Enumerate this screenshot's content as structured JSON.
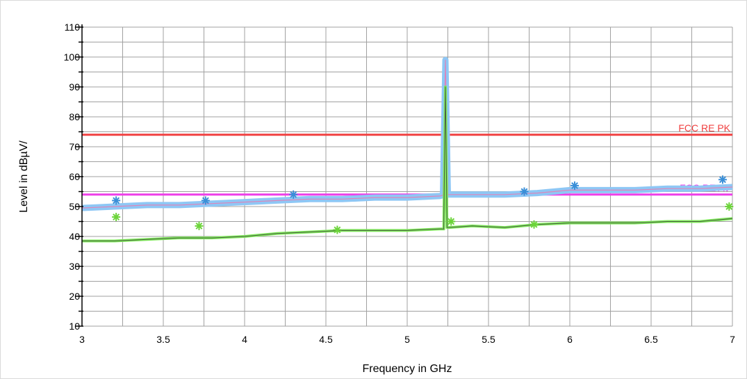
{
  "chart_data": {
    "type": "line",
    "xlabel": "Frequency in GHz",
    "ylabel": "Level in dBµV/",
    "xlim": [
      3,
      7
    ],
    "ylim": [
      10,
      110
    ],
    "xticks": [
      "3",
      "3.5",
      "4",
      "4.5",
      "5",
      "5.5",
      "6",
      "6.5",
      "7"
    ],
    "yticks": [
      "10",
      "20",
      "30",
      "40",
      "50",
      "60",
      "70",
      "80",
      "90",
      "100",
      "110"
    ],
    "grid": true,
    "colors": {
      "grid": "#a0a0a0",
      "peak_trace": "#ff6aa0",
      "peak_trace_wide": "#8ec7f5",
      "avg_trace": "#3a3a3a",
      "avg_trace_wide": "#7fe85a",
      "limit_pk": "#f04040",
      "limit_av": "#ee3ee8",
      "peak_marker": "#3a8fd8",
      "avg_marker": "#6cd43a"
    },
    "limit_lines": [
      {
        "label": "FCC RE PK",
        "value": 74,
        "color": "#f04040"
      },
      {
        "label": "FCC RE AV",
        "value": 54,
        "color": "#ee3ee8"
      }
    ],
    "series": [
      {
        "x": [
          3.0,
          3.2,
          3.4,
          3.6,
          3.8,
          4.0,
          4.2,
          4.4,
          4.6,
          4.8,
          5.0,
          5.2,
          5.22,
          5.235,
          5.25,
          5.27,
          5.4,
          5.6,
          5.8,
          6.0,
          6.2,
          6.4,
          6.6,
          6.8,
          7.0
        ],
        "y": [
          49.5,
          50.0,
          50.5,
          50.5,
          51.0,
          51.5,
          52.0,
          52.5,
          52.5,
          53.0,
          53.0,
          53.5,
          53.8,
          99.0,
          54.0,
          54.0,
          54.0,
          54.0,
          54.5,
          55.5,
          55.5,
          55.5,
          56.0,
          56.0,
          56.5
        ]
      },
      {
        "x": [
          3.0,
          3.2,
          3.4,
          3.6,
          3.8,
          4.0,
          4.2,
          4.4,
          4.6,
          4.8,
          5.0,
          5.2,
          5.225,
          5.235,
          5.245,
          5.26,
          5.4,
          5.6,
          5.8,
          6.0,
          6.2,
          6.4,
          6.6,
          6.8,
          7.0
        ],
        "y": [
          38.5,
          38.5,
          39.0,
          39.5,
          39.5,
          40.0,
          41.0,
          41.5,
          42.0,
          42.0,
          42.0,
          42.5,
          42.5,
          90.0,
          43.0,
          43.0,
          43.5,
          43.0,
          44.0,
          44.5,
          44.5,
          44.5,
          45.0,
          45.0,
          46.0
        ]
      }
    ],
    "peak_markers": [
      {
        "x": 3.21,
        "y": 52
      },
      {
        "x": 3.76,
        "y": 52
      },
      {
        "x": 4.3,
        "y": 54
      },
      {
        "x": 5.72,
        "y": 55
      },
      {
        "x": 6.03,
        "y": 57
      },
      {
        "x": 6.94,
        "y": 59
      }
    ],
    "avg_markers": [
      {
        "x": 3.21,
        "y": 46.5
      },
      {
        "x": 3.72,
        "y": 43.5
      },
      {
        "x": 4.57,
        "y": 42.2
      },
      {
        "x": 5.27,
        "y": 45.0
      },
      {
        "x": 5.78,
        "y": 44.0
      },
      {
        "x": 6.98,
        "y": 50.0
      }
    ]
  }
}
